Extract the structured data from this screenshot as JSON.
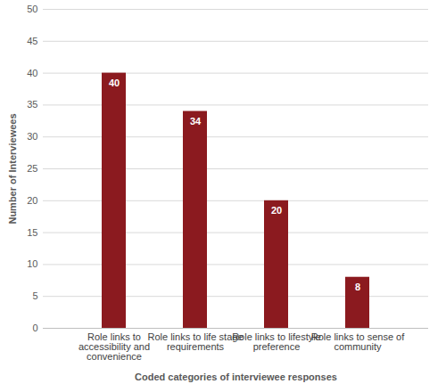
{
  "chart_data": {
    "type": "bar",
    "x_label": "Coded categories of interviewee responses",
    "y_label": "Number of Interviewees",
    "categories": [
      "Role links to accessibility and convenience",
      "Role links to life stage requirements",
      "Role links to lifestyle preference",
      "Role links to sense of community"
    ],
    "values": [
      40,
      34,
      20,
      8
    ],
    "color": "#8b1a1f",
    "ylim": [
      0,
      50
    ],
    "yticks": [
      0,
      5,
      10,
      15,
      20,
      25,
      30,
      35,
      40,
      45,
      50
    ],
    "grid": true,
    "data_labels": true
  }
}
